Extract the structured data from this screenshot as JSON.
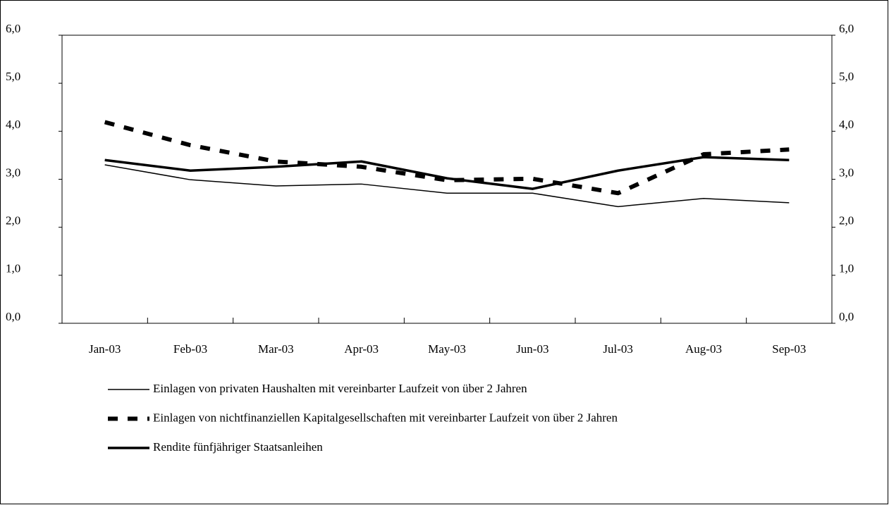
{
  "chart_data": {
    "type": "line",
    "categories": [
      "Jan-03",
      "Feb-03",
      "Mar-03",
      "Apr-03",
      "May-03",
      "Jun-03",
      "Jul-03",
      "Aug-03",
      "Sep-03"
    ],
    "series": [
      {
        "name": "Einlagen von privaten Haushalten mit vereinbarter Laufzeit von über 2 Jahren",
        "color": "#000000",
        "width": 1.5,
        "dash": "none",
        "values": [
          3.3,
          2.99,
          2.86,
          2.9,
          2.71,
          2.71,
          2.43,
          2.6,
          2.51
        ]
      },
      {
        "name": "Einlagen von nichtfinanziellen Kapitalgesellschaften mit vereinbarter Laufzeit von über 2 Jahren",
        "color": "#000000",
        "width": 6,
        "dash": "14 14",
        "values": [
          4.19,
          3.71,
          3.37,
          3.26,
          2.98,
          3.01,
          2.71,
          3.52,
          3.62
        ]
      },
      {
        "name": "Rendite fünfjähriger Staatsanleihen",
        "color": "#000000",
        "width": 3.5,
        "dash": "none",
        "values": [
          3.4,
          3.18,
          3.26,
          3.37,
          3.02,
          2.8,
          3.18,
          3.46,
          3.4
        ]
      }
    ],
    "ylim": [
      0,
      6
    ],
    "yticks": [
      {
        "value": 0,
        "label": "0,0"
      },
      {
        "value": 1,
        "label": "1,0"
      },
      {
        "value": 2,
        "label": "2,0"
      },
      {
        "value": 3,
        "label": "3,0"
      },
      {
        "value": 4,
        "label": "4,0"
      },
      {
        "value": 5,
        "label": "5,0"
      },
      {
        "value": 6,
        "label": "6,0"
      }
    ],
    "y2lim": [
      0,
      6
    ],
    "y2ticks": [
      {
        "value": 0,
        "label": "0,0"
      },
      {
        "value": 1,
        "label": "1,0"
      },
      {
        "value": 2,
        "label": "2,0"
      },
      {
        "value": 3,
        "label": "3,0"
      },
      {
        "value": 4,
        "label": "4,0"
      },
      {
        "value": 5,
        "label": "5,0"
      },
      {
        "value": 6,
        "label": "6,0"
      }
    ],
    "grid": false,
    "legend": "bottom"
  }
}
